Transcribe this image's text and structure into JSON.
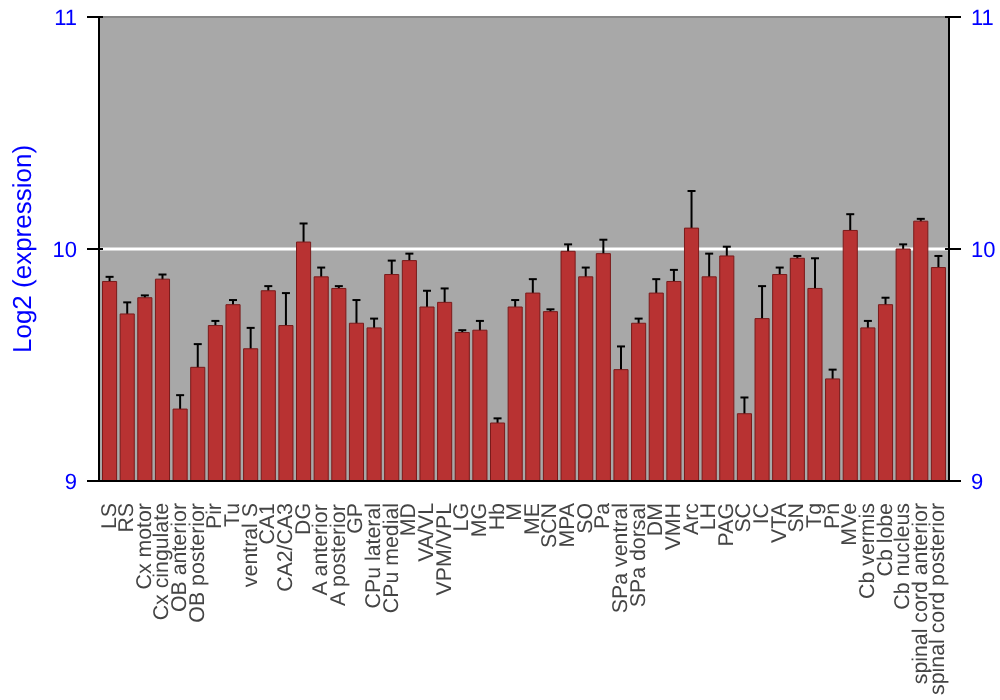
{
  "chart_data": {
    "type": "bar",
    "ylabel": "Log2 (expression)",
    "categories": [
      "LS",
      "RS",
      "Cx motor",
      "Cx cingulate",
      "OB anterior",
      "OB posterior",
      "Pir",
      "Tu",
      "ventral S",
      "CA1",
      "CA2/CA3",
      "DG",
      "A anterior",
      "A posterior",
      "GP",
      "CPu lateral",
      "CPu medial",
      "MD",
      "VA/VL",
      "VPM/VPL",
      "LG",
      "MG",
      "Hb",
      "M",
      "ME",
      "SCN",
      "MPA",
      "SO",
      "Pa",
      "SPa ventral",
      "SPa dorsal",
      "DM",
      "VMH",
      "Arc",
      "LH",
      "PAG",
      "SC",
      "IC",
      "VTA",
      "SN",
      "Tg",
      "Pn",
      "MVe",
      "Cb vermis",
      "Cb lobe",
      "Cb nucleus",
      "spinal cord anterior",
      "spinal cord posterior"
    ],
    "values": [
      9.86,
      9.72,
      9.79,
      9.87,
      9.31,
      9.49,
      9.67,
      9.76,
      9.57,
      9.82,
      9.67,
      10.03,
      9.88,
      9.83,
      9.68,
      9.66,
      9.89,
      9.95,
      9.75,
      9.77,
      9.64,
      9.65,
      9.25,
      9.75,
      9.81,
      9.73,
      9.99,
      9.88,
      9.98,
      9.48,
      9.68,
      9.81,
      9.86,
      10.09,
      9.88,
      9.97,
      9.29,
      9.7,
      9.89,
      9.96,
      9.83,
      9.44,
      10.08,
      9.66,
      9.76,
      10.0,
      10.12,
      9.92
    ],
    "errors": [
      0.02,
      0.05,
      0.01,
      0.02,
      0.06,
      0.1,
      0.02,
      0.02,
      0.09,
      0.02,
      0.14,
      0.08,
      0.04,
      0.01,
      0.1,
      0.04,
      0.06,
      0.03,
      0.07,
      0.06,
      0.01,
      0.04,
      0.02,
      0.03,
      0.06,
      0.01,
      0.03,
      0.04,
      0.06,
      0.1,
      0.02,
      0.06,
      0.05,
      0.16,
      0.1,
      0.04,
      0.07,
      0.14,
      0.03,
      0.01,
      0.13,
      0.04,
      0.07,
      0.03,
      0.03,
      0.02,
      0.01,
      0.05
    ],
    "color": "#b83232",
    "ylim": [
      9,
      11
    ],
    "yticks": [
      9,
      10,
      11
    ],
    "y2lim": [
      9,
      11
    ],
    "y2ticks": [
      9,
      10,
      11
    ],
    "grid": "y"
  }
}
